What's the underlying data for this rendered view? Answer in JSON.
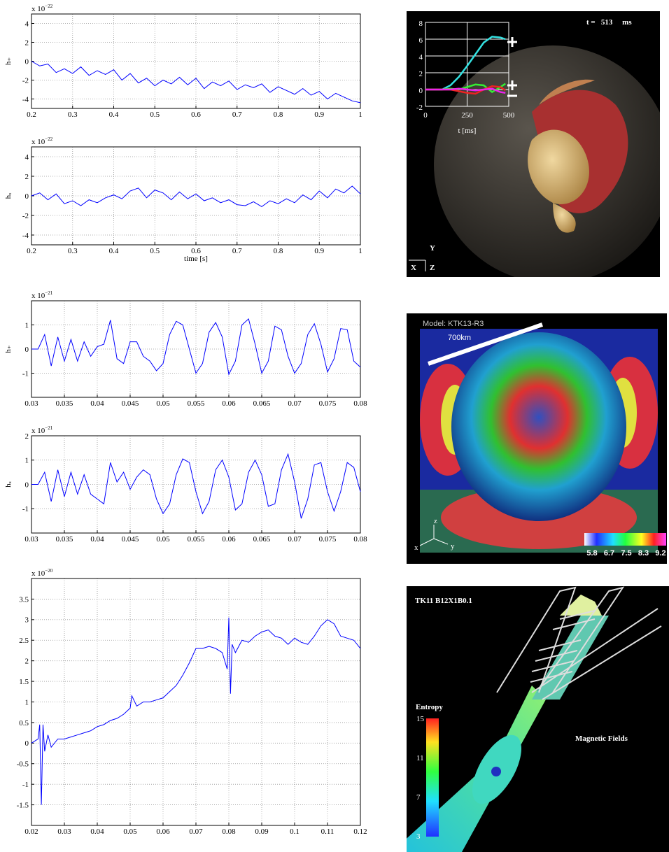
{
  "chart_data": [
    {
      "type": "line",
      "ylabel": "h₊",
      "offset_label": "x 10",
      "offset_exponent": "−22",
      "grid": true,
      "color": "#0000ff",
      "xlim": [
        0.2,
        1
      ],
      "xticks": [
        0.2,
        0.3,
        0.4,
        0.5,
        0.6,
        0.7,
        0.8,
        0.9,
        1
      ],
      "ylim": [
        -5,
        5
      ],
      "yticks": [
        -4,
        -2,
        0,
        2,
        4
      ],
      "x": [
        0.2,
        0.22,
        0.24,
        0.26,
        0.28,
        0.3,
        0.32,
        0.34,
        0.36,
        0.38,
        0.4,
        0.42,
        0.44,
        0.46,
        0.48,
        0.5,
        0.52,
        0.54,
        0.56,
        0.58,
        0.6,
        0.62,
        0.64,
        0.66,
        0.68,
        0.7,
        0.72,
        0.74,
        0.76,
        0.78,
        0.8,
        0.82,
        0.84,
        0.86,
        0.88,
        0.9,
        0.92,
        0.94,
        0.96,
        0.98,
        1
      ],
      "values": [
        0,
        -0.5,
        -0.3,
        -1.2,
        -0.8,
        -1.3,
        -0.6,
        -1.5,
        -1.0,
        -1.4,
        -0.9,
        -2.0,
        -1.3,
        -2.3,
        -1.8,
        -2.6,
        -2.0,
        -2.4,
        -1.7,
        -2.5,
        -1.8,
        -2.9,
        -2.2,
        -2.6,
        -2.1,
        -3.0,
        -2.5,
        -2.8,
        -2.4,
        -3.3,
        -2.7,
        -3.1,
        -3.5,
        -2.9,
        -3.6,
        -3.2,
        -4.0,
        -3.4,
        -3.8,
        -4.2,
        -4.4
      ]
    },
    {
      "type": "line",
      "ylabel": "hₓ",
      "xlabel": "time [s]",
      "offset_label": "x 10",
      "offset_exponent": "−22",
      "grid": true,
      "color": "#0000ff",
      "xlim": [
        0.2,
        1
      ],
      "xticks": [
        0.2,
        0.3,
        0.4,
        0.5,
        0.6,
        0.7,
        0.8,
        0.9,
        1
      ],
      "ylim": [
        -5,
        5
      ],
      "yticks": [
        -4,
        -2,
        0,
        2,
        4
      ],
      "x": [
        0.2,
        0.22,
        0.24,
        0.26,
        0.28,
        0.3,
        0.32,
        0.34,
        0.36,
        0.38,
        0.4,
        0.42,
        0.44,
        0.46,
        0.48,
        0.5,
        0.52,
        0.54,
        0.56,
        0.58,
        0.6,
        0.62,
        0.64,
        0.66,
        0.68,
        0.7,
        0.72,
        0.74,
        0.76,
        0.78,
        0.8,
        0.82,
        0.84,
        0.86,
        0.88,
        0.9,
        0.92,
        0.94,
        0.96,
        0.98,
        1
      ],
      "values": [
        0,
        0.3,
        -0.4,
        0.2,
        -0.8,
        -0.5,
        -1.0,
        -0.4,
        -0.7,
        -0.2,
        0.1,
        -0.3,
        0.5,
        0.8,
        -0.2,
        0.6,
        0.3,
        -0.4,
        0.4,
        -0.3,
        0.2,
        -0.5,
        -0.2,
        -0.7,
        -0.4,
        -0.9,
        -1.0,
        -0.6,
        -1.1,
        -0.5,
        -0.8,
        -0.3,
        -0.7,
        0.1,
        -0.4,
        0.5,
        -0.2,
        0.7,
        0.3,
        1.0,
        0.2
      ]
    },
    {
      "type": "line",
      "ylabel": "h₊",
      "offset_label": "x 10",
      "offset_exponent": "−21",
      "grid": true,
      "color": "#0000ff",
      "xlim": [
        0.03,
        0.08
      ],
      "xticks": [
        0.03,
        0.035,
        0.04,
        0.045,
        0.05,
        0.055,
        0.06,
        0.065,
        0.07,
        0.075,
        0.08
      ],
      "ylim": [
        -2,
        2
      ],
      "yticks": [
        -1,
        0,
        1
      ],
      "x": [
        0.03,
        0.031,
        0.032,
        0.033,
        0.034,
        0.035,
        0.036,
        0.037,
        0.038,
        0.039,
        0.04,
        0.041,
        0.042,
        0.043,
        0.044,
        0.045,
        0.046,
        0.047,
        0.048,
        0.049,
        0.05,
        0.051,
        0.052,
        0.053,
        0.054,
        0.055,
        0.056,
        0.057,
        0.058,
        0.059,
        0.06,
        0.061,
        0.062,
        0.063,
        0.064,
        0.065,
        0.066,
        0.067,
        0.068,
        0.069,
        0.07,
        0.071,
        0.072,
        0.073,
        0.074,
        0.075,
        0.076,
        0.077,
        0.078,
        0.079,
        0.08
      ],
      "values": [
        0,
        0,
        0.6,
        -0.7,
        0.5,
        -0.5,
        0.4,
        -0.5,
        0.3,
        -0.3,
        0.1,
        0.2,
        1.2,
        -0.4,
        -0.6,
        0.3,
        0.3,
        -0.3,
        -0.5,
        -0.9,
        -0.6,
        0.6,
        1.15,
        1.0,
        0.0,
        -1.0,
        -0.6,
        0.7,
        1.1,
        0.5,
        -1.05,
        -0.5,
        1.0,
        1.25,
        0.2,
        -1.0,
        -0.5,
        0.95,
        0.8,
        -0.3,
        -1.0,
        -0.6,
        0.6,
        1.05,
        0.2,
        -0.95,
        -0.4,
        0.85,
        0.8,
        -0.5,
        -0.75
      ]
    },
    {
      "type": "line",
      "ylabel": "hₓ",
      "offset_label": "x 10",
      "offset_exponent": "−21",
      "grid": true,
      "color": "#0000ff",
      "xlim": [
        0.03,
        0.08
      ],
      "xticks": [
        0.03,
        0.035,
        0.04,
        0.045,
        0.05,
        0.055,
        0.06,
        0.065,
        0.07,
        0.075,
        0.08
      ],
      "ylim": [
        -2,
        2
      ],
      "yticks": [
        -1,
        0,
        1,
        2
      ],
      "x": [
        0.03,
        0.031,
        0.032,
        0.033,
        0.034,
        0.035,
        0.036,
        0.037,
        0.038,
        0.039,
        0.04,
        0.041,
        0.042,
        0.043,
        0.044,
        0.045,
        0.046,
        0.047,
        0.048,
        0.049,
        0.05,
        0.051,
        0.052,
        0.053,
        0.054,
        0.055,
        0.056,
        0.057,
        0.058,
        0.059,
        0.06,
        0.061,
        0.062,
        0.063,
        0.064,
        0.065,
        0.066,
        0.067,
        0.068,
        0.069,
        0.07,
        0.071,
        0.072,
        0.073,
        0.074,
        0.075,
        0.076,
        0.077,
        0.078,
        0.079,
        0.08
      ],
      "values": [
        0,
        0,
        0.5,
        -0.7,
        0.6,
        -0.5,
        0.5,
        -0.4,
        0.4,
        -0.4,
        -0.6,
        -0.8,
        0.9,
        0.1,
        0.5,
        -0.2,
        0.3,
        0.6,
        0.4,
        -0.6,
        -1.2,
        -0.8,
        0.4,
        1.05,
        0.9,
        -0.3,
        -1.2,
        -0.7,
        0.6,
        1.0,
        0.3,
        -1.05,
        -0.8,
        0.5,
        1.0,
        0.4,
        -0.9,
        -0.8,
        0.6,
        1.25,
        0.1,
        -1.4,
        -0.6,
        0.8,
        0.9,
        -0.3,
        -1.1,
        -0.3,
        0.9,
        0.7,
        -0.3
      ]
    },
    {
      "type": "line",
      "offset_label": "x 10",
      "offset_exponent": "−20",
      "grid": true,
      "color": "#0000ff",
      "xlim": [
        0.02,
        0.12
      ],
      "xticks": [
        0.02,
        0.03,
        0.04,
        0.05,
        0.06,
        0.07,
        0.08,
        0.09,
        0.1,
        0.11,
        0.12
      ],
      "ylim": [
        -2,
        4
      ],
      "yticks": [
        -1.5,
        -1,
        -0.5,
        0,
        0.5,
        1,
        1.5,
        2,
        2.5,
        3,
        3.5
      ],
      "x": [
        0.02,
        0.022,
        0.0225,
        0.023,
        0.0235,
        0.024,
        0.025,
        0.026,
        0.028,
        0.03,
        0.032,
        0.034,
        0.036,
        0.038,
        0.04,
        0.042,
        0.044,
        0.046,
        0.048,
        0.05,
        0.0505,
        0.052,
        0.054,
        0.056,
        0.058,
        0.06,
        0.062,
        0.064,
        0.066,
        0.068,
        0.07,
        0.072,
        0.074,
        0.076,
        0.078,
        0.0795,
        0.08,
        0.0805,
        0.081,
        0.082,
        0.084,
        0.086,
        0.088,
        0.09,
        0.092,
        0.094,
        0.096,
        0.098,
        0.1,
        0.102,
        0.104,
        0.106,
        0.108,
        0.11,
        0.112,
        0.114,
        0.116,
        0.118,
        0.12
      ],
      "values": [
        0,
        0.1,
        0.45,
        -1.5,
        0.45,
        -0.2,
        0.2,
        -0.1,
        0.1,
        0.1,
        0.15,
        0.2,
        0.25,
        0.3,
        0.4,
        0.45,
        0.55,
        0.6,
        0.7,
        0.85,
        1.15,
        0.9,
        1.0,
        1.0,
        1.05,
        1.1,
        1.25,
        1.4,
        1.65,
        1.95,
        2.3,
        2.3,
        2.35,
        2.3,
        2.2,
        1.8,
        3.05,
        1.2,
        2.4,
        2.2,
        2.5,
        2.45,
        2.6,
        2.7,
        2.75,
        2.6,
        2.55,
        2.4,
        2.55,
        2.45,
        2.4,
        2.6,
        2.85,
        3.0,
        2.9,
        2.6,
        2.55,
        2.5,
        2.3
      ]
    },
    {
      "type": "line",
      "xlabel": "t [ms]",
      "grid": true,
      "dark": true,
      "xlim": [
        0,
        500
      ],
      "xticks": [
        0,
        250,
        500
      ],
      "ylim": [
        -2,
        8
      ],
      "yticks": [
        -2,
        0,
        2,
        4,
        6,
        8
      ],
      "x": [
        0,
        100,
        150,
        200,
        250,
        300,
        350,
        400,
        450,
        480
      ],
      "series": [
        {
          "color": "#33e0e0",
          "values": [
            0,
            0,
            0.5,
            1.5,
            2.8,
            4.2,
            5.6,
            6.3,
            6.2,
            6.0
          ]
        },
        {
          "color": "#33ee33",
          "values": [
            0,
            0,
            0.1,
            0,
            0.3,
            0.6,
            0.5,
            -0.3,
            0.3,
            0.7
          ]
        },
        {
          "color": "#ee2222",
          "values": [
            0,
            0,
            0,
            -0.2,
            -0.4,
            -0.5,
            0,
            0.4,
            0.3,
            -0.1
          ]
        },
        {
          "color": "#ee22ee",
          "values": [
            0,
            0,
            0,
            0.1,
            0,
            -0.1,
            0,
            0.1,
            -0.3,
            -0.4
          ]
        }
      ]
    }
  ],
  "images": {
    "panel1": {
      "time_label": "t =   513     ms",
      "axis_y": "Y",
      "axis_x": "X",
      "axis_z": "Z"
    },
    "panel2": {
      "model": "Model: KTK13-R3",
      "scale": "700km",
      "colorbar_ticks": [
        5.8,
        6.7,
        7.5,
        8.3,
        9.2
      ],
      "axis_z": "z",
      "axis_x": "x",
      "axis_y": "y"
    },
    "panel3": {
      "title": "TK11 B12X1B0.1",
      "colorbar_label": "Entropy",
      "colorbar_ticks": [
        15,
        11,
        7,
        3
      ],
      "field_label": "Magnetic Fields"
    }
  }
}
